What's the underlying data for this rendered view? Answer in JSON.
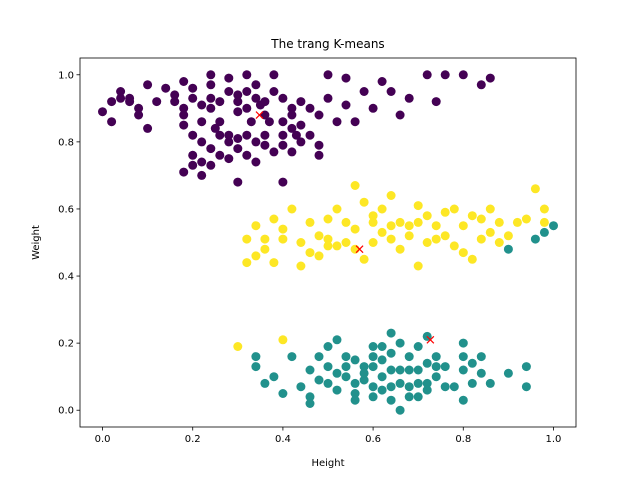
{
  "chart_data": {
    "type": "scatter",
    "title": "The trang K-means",
    "xlabel": "Height",
    "ylabel": "Weight",
    "xlim": [
      -0.05,
      1.05
    ],
    "ylim": [
      -0.05,
      1.05
    ],
    "xticks": [
      "0.0",
      "0.2",
      "0.4",
      "0.6",
      "0.8",
      "1.0"
    ],
    "yticks": [
      "0.0",
      "0.2",
      "0.4",
      "0.6",
      "0.8",
      "1.0"
    ],
    "grid": false,
    "legend": false,
    "colors": {
      "cluster_purple": "#440154",
      "cluster_teal": "#21918c",
      "cluster_yellow": "#fde725",
      "centroid": "#ff0000"
    },
    "series": [
      {
        "color": "#440154",
        "points": [
          [
            0.0,
            0.89
          ],
          [
            0.02,
            0.86
          ],
          [
            0.02,
            0.92
          ],
          [
            0.04,
            0.93
          ],
          [
            0.04,
            0.95
          ],
          [
            0.06,
            0.93
          ],
          [
            0.06,
            0.92
          ],
          [
            0.08,
            0.9
          ],
          [
            0.08,
            0.88
          ],
          [
            0.1,
            0.97
          ],
          [
            0.1,
            0.84
          ],
          [
            0.12,
            0.92
          ],
          [
            0.14,
            0.96
          ],
          [
            0.16,
            0.94
          ],
          [
            0.16,
            0.92
          ],
          [
            0.18,
            0.98
          ],
          [
            0.18,
            0.9
          ],
          [
            0.18,
            0.88
          ],
          [
            0.18,
            0.85
          ],
          [
            0.2,
            0.96
          ],
          [
            0.2,
            0.93
          ],
          [
            0.22,
            0.91
          ],
          [
            0.22,
            0.86
          ],
          [
            0.22,
            0.8
          ],
          [
            0.24,
            1.0
          ],
          [
            0.24,
            0.97
          ],
          [
            0.24,
            0.93
          ],
          [
            0.24,
            0.9
          ],
          [
            0.26,
            0.92
          ],
          [
            0.26,
            0.86
          ],
          [
            0.26,
            0.82
          ],
          [
            0.28,
            0.99
          ],
          [
            0.28,
            0.95
          ],
          [
            0.3,
            0.94
          ],
          [
            0.3,
            0.92
          ],
          [
            0.3,
            0.89
          ],
          [
            0.32,
            1.0
          ],
          [
            0.32,
            0.95
          ],
          [
            0.32,
            0.9
          ],
          [
            0.34,
            0.97
          ],
          [
            0.34,
            0.93
          ],
          [
            0.36,
            0.92
          ],
          [
            0.36,
            0.88
          ],
          [
            0.38,
            1.0
          ],
          [
            0.38,
            0.95
          ],
          [
            0.4,
            0.93
          ],
          [
            0.4,
            0.86
          ],
          [
            0.42,
            0.9
          ],
          [
            0.42,
            0.88
          ],
          [
            0.44,
            0.92
          ],
          [
            0.44,
            0.85
          ],
          [
            0.46,
            0.9
          ],
          [
            0.48,
            0.88
          ],
          [
            0.5,
            1.0
          ],
          [
            0.5,
            0.93
          ],
          [
            0.52,
            0.86
          ],
          [
            0.54,
            0.99
          ],
          [
            0.54,
            0.91
          ],
          [
            0.56,
            0.86
          ],
          [
            0.58,
            0.95
          ],
          [
            0.6,
            0.9
          ],
          [
            0.62,
            0.98
          ],
          [
            0.64,
            0.95
          ],
          [
            0.66,
            0.88
          ],
          [
            0.68,
            0.93
          ],
          [
            0.72,
            1.0
          ],
          [
            0.74,
            0.92
          ],
          [
            0.76,
            1.0
          ],
          [
            0.8,
            1.0
          ],
          [
            0.84,
            0.97
          ],
          [
            0.86,
            0.99
          ],
          [
            0.18,
            0.71
          ],
          [
            0.2,
            0.73
          ],
          [
            0.2,
            0.76
          ],
          [
            0.22,
            0.7
          ],
          [
            0.22,
            0.74
          ],
          [
            0.24,
            0.78
          ],
          [
            0.24,
            0.73
          ],
          [
            0.26,
            0.76
          ],
          [
            0.28,
            0.8
          ],
          [
            0.28,
            0.75
          ],
          [
            0.3,
            0.68
          ],
          [
            0.3,
            0.81
          ],
          [
            0.3,
            0.78
          ],
          [
            0.32,
            0.82
          ],
          [
            0.32,
            0.76
          ],
          [
            0.34,
            0.8
          ],
          [
            0.34,
            0.74
          ],
          [
            0.36,
            0.82
          ],
          [
            0.36,
            0.79
          ],
          [
            0.38,
            0.77
          ],
          [
            0.4,
            0.68
          ],
          [
            0.4,
            0.82
          ],
          [
            0.4,
            0.79
          ],
          [
            0.42,
            0.84
          ],
          [
            0.42,
            0.77
          ],
          [
            0.44,
            0.8
          ],
          [
            0.46,
            0.82
          ],
          [
            0.48,
            0.79
          ],
          [
            0.48,
            0.76
          ],
          [
            0.28,
            0.82
          ],
          [
            0.33,
            0.86
          ],
          [
            0.37,
            0.86
          ],
          [
            0.35,
            0.91
          ],
          [
            0.43,
            0.82
          ],
          [
            0.25,
            0.84
          ],
          [
            0.2,
            0.82
          ]
        ]
      },
      {
        "color": "#fde725",
        "points": [
          [
            0.3,
            0.19
          ],
          [
            0.4,
            0.21
          ],
          [
            0.32,
            0.51
          ],
          [
            0.32,
            0.44
          ],
          [
            0.34,
            0.55
          ],
          [
            0.34,
            0.46
          ],
          [
            0.36,
            0.51
          ],
          [
            0.38,
            0.57
          ],
          [
            0.38,
            0.44
          ],
          [
            0.4,
            0.54
          ],
          [
            0.4,
            0.51
          ],
          [
            0.42,
            0.6
          ],
          [
            0.44,
            0.5
          ],
          [
            0.44,
            0.43
          ],
          [
            0.46,
            0.47
          ],
          [
            0.48,
            0.52
          ],
          [
            0.48,
            0.46
          ],
          [
            0.5,
            0.51
          ],
          [
            0.5,
            0.49
          ],
          [
            0.52,
            0.6
          ],
          [
            0.52,
            0.49
          ],
          [
            0.54,
            0.56
          ],
          [
            0.54,
            0.5
          ],
          [
            0.56,
            0.67
          ],
          [
            0.56,
            0.54
          ],
          [
            0.58,
            0.62
          ],
          [
            0.58,
            0.45
          ],
          [
            0.6,
            0.58
          ],
          [
            0.6,
            0.5
          ],
          [
            0.62,
            0.6
          ],
          [
            0.62,
            0.53
          ],
          [
            0.64,
            0.64
          ],
          [
            0.64,
            0.51
          ],
          [
            0.66,
            0.56
          ],
          [
            0.66,
            0.48
          ],
          [
            0.68,
            0.55
          ],
          [
            0.7,
            0.61
          ],
          [
            0.7,
            0.43
          ],
          [
            0.72,
            0.58
          ],
          [
            0.72,
            0.5
          ],
          [
            0.74,
            0.55
          ],
          [
            0.76,
            0.59
          ],
          [
            0.76,
            0.52
          ],
          [
            0.78,
            0.6
          ],
          [
            0.78,
            0.49
          ],
          [
            0.8,
            0.55
          ],
          [
            0.8,
            0.47
          ],
          [
            0.82,
            0.58
          ],
          [
            0.82,
            0.45
          ],
          [
            0.84,
            0.51
          ],
          [
            0.86,
            0.6
          ],
          [
            0.86,
            0.53
          ],
          [
            0.88,
            0.56
          ],
          [
            0.9,
            0.52
          ],
          [
            0.92,
            0.56
          ],
          [
            0.94,
            0.57
          ],
          [
            0.96,
            0.66
          ],
          [
            0.98,
            0.6
          ],
          [
            0.98,
            0.56
          ],
          [
            0.46,
            0.56
          ],
          [
            0.5,
            0.57
          ],
          [
            0.56,
            0.48
          ],
          [
            0.6,
            0.56
          ],
          [
            0.64,
            0.55
          ],
          [
            0.68,
            0.52
          ],
          [
            0.7,
            0.56
          ],
          [
            0.74,
            0.51
          ],
          [
            0.84,
            0.57
          ],
          [
            0.88,
            0.5
          ],
          [
            0.36,
            0.48
          ]
        ]
      },
      {
        "color": "#21918c",
        "points": [
          [
            0.34,
            0.16
          ],
          [
            0.34,
            0.13
          ],
          [
            0.36,
            0.08
          ],
          [
            0.38,
            0.1
          ],
          [
            0.4,
            0.05
          ],
          [
            0.42,
            0.16
          ],
          [
            0.44,
            0.07
          ],
          [
            0.46,
            0.12
          ],
          [
            0.46,
            0.04
          ],
          [
            0.46,
            0.02
          ],
          [
            0.48,
            0.09
          ],
          [
            0.48,
            0.16
          ],
          [
            0.5,
            0.19
          ],
          [
            0.5,
            0.08
          ],
          [
            0.52,
            0.21
          ],
          [
            0.52,
            0.11
          ],
          [
            0.52,
            0.06
          ],
          [
            0.54,
            0.16
          ],
          [
            0.54,
            0.1
          ],
          [
            0.56,
            0.15
          ],
          [
            0.56,
            0.08
          ],
          [
            0.56,
            0.05
          ],
          [
            0.56,
            0.03
          ],
          [
            0.58,
            0.13
          ],
          [
            0.58,
            0.09
          ],
          [
            0.6,
            0.19
          ],
          [
            0.6,
            0.16
          ],
          [
            0.6,
            0.13
          ],
          [
            0.6,
            0.07
          ],
          [
            0.6,
            0.04
          ],
          [
            0.62,
            0.15
          ],
          [
            0.62,
            0.1
          ],
          [
            0.62,
            0.06
          ],
          [
            0.64,
            0.23
          ],
          [
            0.64,
            0.17
          ],
          [
            0.64,
            0.12
          ],
          [
            0.64,
            0.07
          ],
          [
            0.64,
            0.03
          ],
          [
            0.66,
            0.2
          ],
          [
            0.66,
            0.12
          ],
          [
            0.66,
            0.08
          ],
          [
            0.66,
            0.0
          ],
          [
            0.68,
            0.16
          ],
          [
            0.68,
            0.12
          ],
          [
            0.68,
            0.07
          ],
          [
            0.7,
            0.19
          ],
          [
            0.7,
            0.12
          ],
          [
            0.7,
            0.08
          ],
          [
            0.7,
            0.04
          ],
          [
            0.72,
            0.22
          ],
          [
            0.72,
            0.14
          ],
          [
            0.72,
            0.08
          ],
          [
            0.72,
            0.06
          ],
          [
            0.74,
            0.16
          ],
          [
            0.74,
            0.1
          ],
          [
            0.76,
            0.13
          ],
          [
            0.76,
            0.07
          ],
          [
            0.78,
            0.07
          ],
          [
            0.8,
            0.2
          ],
          [
            0.8,
            0.16
          ],
          [
            0.8,
            0.12
          ],
          [
            0.8,
            0.03
          ],
          [
            0.82,
            0.14
          ],
          [
            0.82,
            0.08
          ],
          [
            0.84,
            0.16
          ],
          [
            0.84,
            0.11
          ],
          [
            0.86,
            0.08
          ],
          [
            0.9,
            0.11
          ],
          [
            0.94,
            0.13
          ],
          [
            0.94,
            0.07
          ],
          [
            0.9,
            0.48
          ],
          [
            0.96,
            0.51
          ],
          [
            0.98,
            0.53
          ],
          [
            1.0,
            0.55
          ],
          [
            0.54,
            0.13
          ],
          [
            0.62,
            0.19
          ],
          [
            0.68,
            0.04
          ],
          [
            0.74,
            0.13
          ],
          [
            0.58,
            0.11
          ],
          [
            0.5,
            0.13
          ]
        ]
      }
    ],
    "centroids": [
      [
        0.348,
        0.88
      ],
      [
        0.57,
        0.48
      ],
      [
        0.727,
        0.21
      ]
    ]
  }
}
